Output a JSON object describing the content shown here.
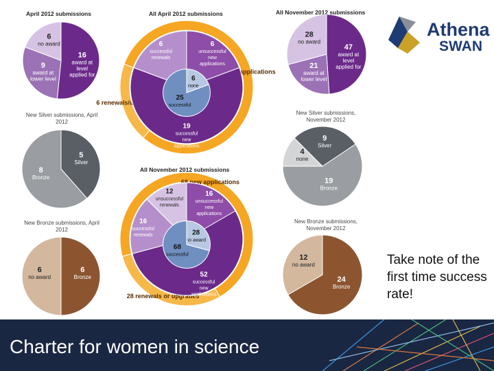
{
  "logo": {
    "line1": "Athena",
    "line2": "SWAN"
  },
  "note": "Take note of the first time success rate!",
  "footer": {
    "title": "Charter for women in science"
  },
  "chart_data": [
    {
      "type": "pie",
      "title": "April 2012 submissions",
      "subtitle": "",
      "slices": [
        {
          "value": 16,
          "label": "award at level applied for",
          "color": "#6b2a8a"
        },
        {
          "value": 9,
          "label": "award at lower level",
          "color": "#9b72b6"
        },
        {
          "value": 6,
          "label": "no award",
          "color": "#d6c3e3"
        }
      ]
    },
    {
      "type": "donut",
      "title": "All April 2012 submissions",
      "outer": [
        {
          "value": 25,
          "label": "new applications",
          "color": "#f5a623"
        },
        {
          "value": 6,
          "label": "renewals/upgrades",
          "color": "#f7b84a"
        }
      ],
      "inner": [
        {
          "value": 19,
          "label": "successful new applications",
          "color": "#6b2a8a"
        },
        {
          "value": 6,
          "label": "unsuccessful new applications",
          "color": "#8e4da8"
        },
        {
          "value": 6,
          "label": "successful renewals",
          "color": "#b58fcc"
        },
        {
          "value": 0,
          "label": "unsuccessful renewals",
          "color": "#d6c3e3"
        }
      ],
      "center": [
        {
          "value": 25,
          "label": "successful",
          "color": "#6f8fc0"
        },
        {
          "value": 6,
          "label": "none",
          "color": "#b8c8e3"
        }
      ]
    },
    {
      "type": "pie",
      "title": "All November 2012 submissions",
      "subtitle": "",
      "slices": [
        {
          "value": 47,
          "label": "award at level applied for",
          "color": "#6b2a8a"
        },
        {
          "value": 21,
          "label": "award at lower level",
          "color": "#9b72b6"
        },
        {
          "value": 28,
          "label": "no award",
          "color": "#d6c3e3"
        }
      ]
    },
    {
      "type": "pie",
      "title": "",
      "subtitle": "New Silver submissions, April 2012",
      "slices": [
        {
          "value": 5,
          "label": "Silver",
          "color": "#5a5f66"
        },
        {
          "value": 8,
          "label": "Bronze",
          "color": "#9a9da1"
        }
      ]
    },
    {
      "type": "pie",
      "title": "",
      "subtitle": "New Silver submissions, November 2012",
      "slices": [
        {
          "value": 9,
          "label": "Silver",
          "color": "#5a5f66"
        },
        {
          "value": 19,
          "label": "Bronze",
          "color": "#9a9da1"
        },
        {
          "value": 4,
          "label": "none",
          "color": "#d4d5d7"
        }
      ]
    },
    {
      "type": "donut",
      "title": "All November 2012 submissions",
      "outer": [
        {
          "value": 68,
          "label": "new applications",
          "color": "#f5a623"
        },
        {
          "value": 28,
          "label": "renewals or upgrades",
          "color": "#f7b84a"
        }
      ],
      "inner": [
        {
          "value": 52,
          "label": "successful new applications",
          "color": "#6b2a8a"
        },
        {
          "value": 16,
          "label": "unsuccessful new applications",
          "color": "#8e4da8"
        },
        {
          "value": 16,
          "label": "successful renewals",
          "color": "#b58fcc"
        },
        {
          "value": 12,
          "label": "unsuccessful renewals",
          "color": "#d6c3e3"
        }
      ],
      "center": [
        {
          "value": 68,
          "label": "successful",
          "color": "#6f8fc0"
        },
        {
          "value": 28,
          "label": "no award",
          "color": "#b8c8e3"
        }
      ]
    },
    {
      "type": "pie",
      "title": "",
      "subtitle": "New Bronze submissions, April 2012",
      "slices": [
        {
          "value": 6,
          "label": "Bronze",
          "color": "#8c5530"
        },
        {
          "value": 6,
          "label": "no award",
          "color": "#d3b89e"
        }
      ]
    },
    {
      "type": "pie",
      "title": "",
      "subtitle": "New Bronze submissions, November 2012",
      "slices": [
        {
          "value": 24,
          "label": "Bronze",
          "color": "#8c5530"
        },
        {
          "value": 12,
          "label": "no award",
          "color": "#d3b89e"
        }
      ]
    }
  ]
}
